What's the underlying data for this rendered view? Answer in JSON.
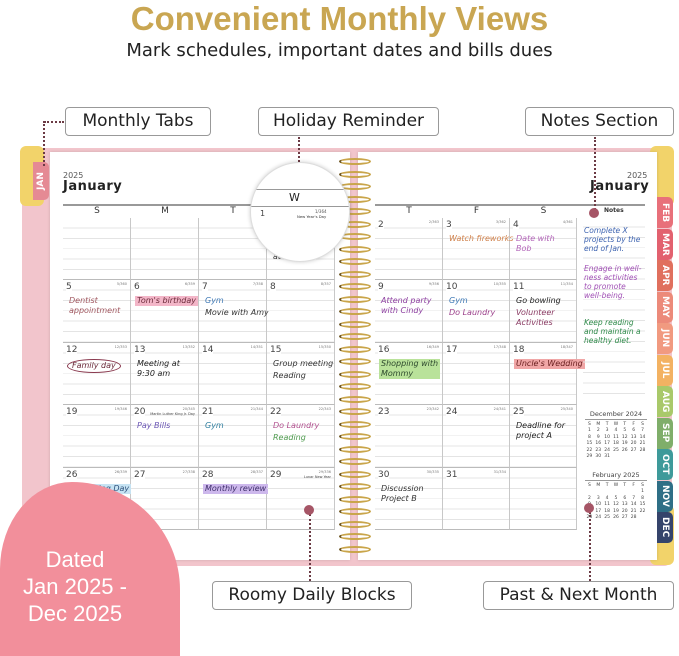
{
  "header": {
    "title": "Convenient Monthly Views",
    "subtitle": "Mark schedules, important dates and bills dues"
  },
  "colors": {
    "gold": "#c9a652",
    "cover_pink": "#f2c5cc",
    "badge_pink": "#f28f9b",
    "pin": "#a65566"
  },
  "callouts": {
    "monthly_tabs": "Monthly Tabs",
    "holiday_reminder": "Holiday Reminder",
    "notes_section": "Notes Section",
    "roomy_daily_blocks": "Roomy Daily Blocks",
    "past_next_month": "Past & Next Month"
  },
  "badge": {
    "line1": "Dated",
    "line2": "Jan 2025 -",
    "line3": "Dec 2025"
  },
  "planner": {
    "year": "2025",
    "month": "January",
    "weekdays": [
      "S",
      "M",
      "T",
      "W",
      "T",
      "F",
      "S"
    ],
    "left_tab": "JAN",
    "tabs": [
      {
        "label": "FEB",
        "color": "#e8707a"
      },
      {
        "label": "MAR",
        "color": "#e2616f"
      },
      {
        "label": "APR",
        "color": "#e0705e"
      },
      {
        "label": "MAY",
        "color": "#ec8a7a"
      },
      {
        "label": "JUN",
        "color": "#f19a80"
      },
      {
        "label": "JUL",
        "color": "#f3b262"
      },
      {
        "label": "AUG",
        "color": "#a9c96a"
      },
      {
        "label": "SEP",
        "color": "#7fae6a"
      },
      {
        "label": "OCT",
        "color": "#3e9a9a"
      },
      {
        "label": "NOV",
        "color": "#2f6f86"
      },
      {
        "label": "DEC",
        "color": "#35446b"
      }
    ],
    "magnifier": {
      "weekday": "W",
      "date": "1",
      "count": "1/364",
      "holiday": "New Year's Day"
    },
    "weeks": [
      [
        {
          "date": ""
        },
        {
          "date": ""
        },
        {
          "date": ""
        },
        {
          "date": "1",
          "count": "1/364",
          "holiday": "New Year's Day",
          "notes": [
            {
              "text": "at 8 pm",
              "color": "#333"
            }
          ]
        },
        {
          "date": "2",
          "count": "2/363"
        },
        {
          "date": "3",
          "count": "3/362",
          "notes": [
            {
              "text": "Watch fireworks",
              "color": "#d0804a"
            }
          ]
        },
        {
          "date": "4",
          "count": "4/361",
          "notes": [
            {
              "text": "Date with\nBob",
              "color": "#b264b8"
            }
          ]
        }
      ],
      [
        {
          "date": "5",
          "count": "5/360",
          "notes": [
            {
              "text": "Dentist\nappointment",
              "color": "#a0575f"
            }
          ]
        },
        {
          "date": "6",
          "count": "6/359",
          "notes": [
            {
              "text": "Tom's birthday",
              "color": "#6b2a3a",
              "hl": "#f3b6c8"
            }
          ]
        },
        {
          "date": "7",
          "count": "7/358",
          "notes": [
            {
              "text": "Gym",
              "color": "#3d78b5"
            },
            {
              "text": "Movie with Amy",
              "color": "#333"
            }
          ]
        },
        {
          "date": "8",
          "count": "8/357"
        },
        {
          "date": "9",
          "count": "9/356",
          "notes": [
            {
              "text": "Attend party\nwith Cindy",
              "color": "#8d3fa0"
            }
          ]
        },
        {
          "date": "10",
          "count": "10/355",
          "notes": [
            {
              "text": "Gym",
              "color": "#3d78b5"
            },
            {
              "text": "Do Laundry",
              "color": "#9b3f8a"
            }
          ]
        },
        {
          "date": "11",
          "count": "11/354",
          "notes": [
            {
              "text": "Go bowling",
              "color": "#222"
            },
            {
              "text": "Volunteer\nActivities",
              "color": "#8a3b63"
            }
          ]
        }
      ],
      [
        {
          "date": "12",
          "count": "12/353",
          "notes": [
            {
              "text": "Family day",
              "color": "#6b2a3a",
              "circle": "#8a3b50"
            }
          ]
        },
        {
          "date": "13",
          "count": "13/352",
          "notes": [
            {
              "text": "Meeting at\n9:30 am",
              "color": "#222"
            }
          ]
        },
        {
          "date": "14",
          "count": "14/351"
        },
        {
          "date": "15",
          "count": "15/350",
          "notes": [
            {
              "text": "Group meeting",
              "color": "#333"
            },
            {
              "text": "Reading",
              "color": "#333"
            }
          ]
        },
        {
          "date": "16",
          "count": "16/349",
          "notes": [
            {
              "text": "Shopping with\nMommy",
              "color": "#2e4a2e",
              "hl": "#b9e29a"
            }
          ]
        },
        {
          "date": "17",
          "count": "17/348"
        },
        {
          "date": "18",
          "count": "18/347",
          "notes": [
            {
              "text": "Uncle's Wedding",
              "color": "#6b2020",
              "hl": "#f0a6a6"
            }
          ]
        }
      ],
      [
        {
          "date": "19",
          "count": "19/346"
        },
        {
          "date": "20",
          "count": "20/345",
          "holiday": "Martin Luther King Jr. Day",
          "notes": [
            {
              "text": "Pay Bills",
              "color": "#6a55b5"
            }
          ]
        },
        {
          "date": "21",
          "count": "21/344",
          "notes": [
            {
              "text": "Gym",
              "color": "#2f7fa0"
            }
          ]
        },
        {
          "date": "22",
          "count": "22/343",
          "notes": [
            {
              "text": "Do Laundry",
              "color": "#b2508f"
            },
            {
              "text": "Reading",
              "color": "#4e9a4e"
            }
          ]
        },
        {
          "date": "23",
          "count": "23/342"
        },
        {
          "date": "24",
          "count": "24/341"
        },
        {
          "date": "25",
          "count": "25/340",
          "notes": [
            {
              "text": "Deadline for\nproject A",
              "color": "#222"
            }
          ]
        }
      ],
      [
        {
          "date": "26",
          "count": "26/339",
          "notes": [
            {
              "text": "Swimming Day",
              "color": "#2b4f7a",
              "hl": "#c6e3f3"
            }
          ]
        },
        {
          "date": "27",
          "count": "27/338"
        },
        {
          "date": "28",
          "count": "28/337",
          "notes": [
            {
              "text": "Monthly review",
              "color": "#3d2c6a",
              "hl": "#cdb8ec"
            }
          ]
        },
        {
          "date": "29",
          "count": "29/336",
          "holiday": "Lunar New Year"
        },
        {
          "date": "30",
          "count": "30/335",
          "notes": [
            {
              "text": "Discussion\nProject B",
              "color": "#333"
            }
          ]
        },
        {
          "date": "31",
          "count": "31/334"
        },
        {
          "date": ""
        }
      ]
    ],
    "notes_panel": {
      "title": "Notes",
      "items": [
        {
          "text": "Complete X\nprojects by the\nend of Jan.",
          "color": "#3d63b0"
        },
        {
          "text": "Engage in well-\nness activities\nto promote\nwell-being.",
          "color": "#a04fb5"
        },
        {
          "text": "Keep reading\nand maintain a\nhealthy diet.",
          "color": "#2f8a4a"
        }
      ]
    },
    "mini_calendars": [
      {
        "title": "December 2024",
        "weekdays": [
          "S",
          "M",
          "T",
          "W",
          "T",
          "F",
          "S"
        ],
        "weeks": [
          [
            "1",
            "2",
            "3",
            "4",
            "5",
            "6",
            "7"
          ],
          [
            "8",
            "9",
            "10",
            "11",
            "12",
            "13",
            "14"
          ],
          [
            "15",
            "16",
            "17",
            "18",
            "19",
            "20",
            "21"
          ],
          [
            "22",
            "23",
            "24",
            "25",
            "26",
            "27",
            "28"
          ],
          [
            "29",
            "30",
            "31",
            "",
            "",
            "",
            ""
          ]
        ]
      },
      {
        "title": "February 2025",
        "weekdays": [
          "S",
          "M",
          "T",
          "W",
          "T",
          "F",
          "S"
        ],
        "weeks": [
          [
            "",
            "",
            "",
            "",
            "",
            "",
            "1"
          ],
          [
            "2",
            "3",
            "4",
            "5",
            "6",
            "7",
            "8"
          ],
          [
            "9",
            "10",
            "11",
            "12",
            "13",
            "14",
            "15"
          ],
          [
            "16",
            "17",
            "18",
            "19",
            "20",
            "21",
            "22"
          ],
          [
            "23",
            "24",
            "25",
            "26",
            "27",
            "28",
            ""
          ]
        ]
      }
    ]
  }
}
